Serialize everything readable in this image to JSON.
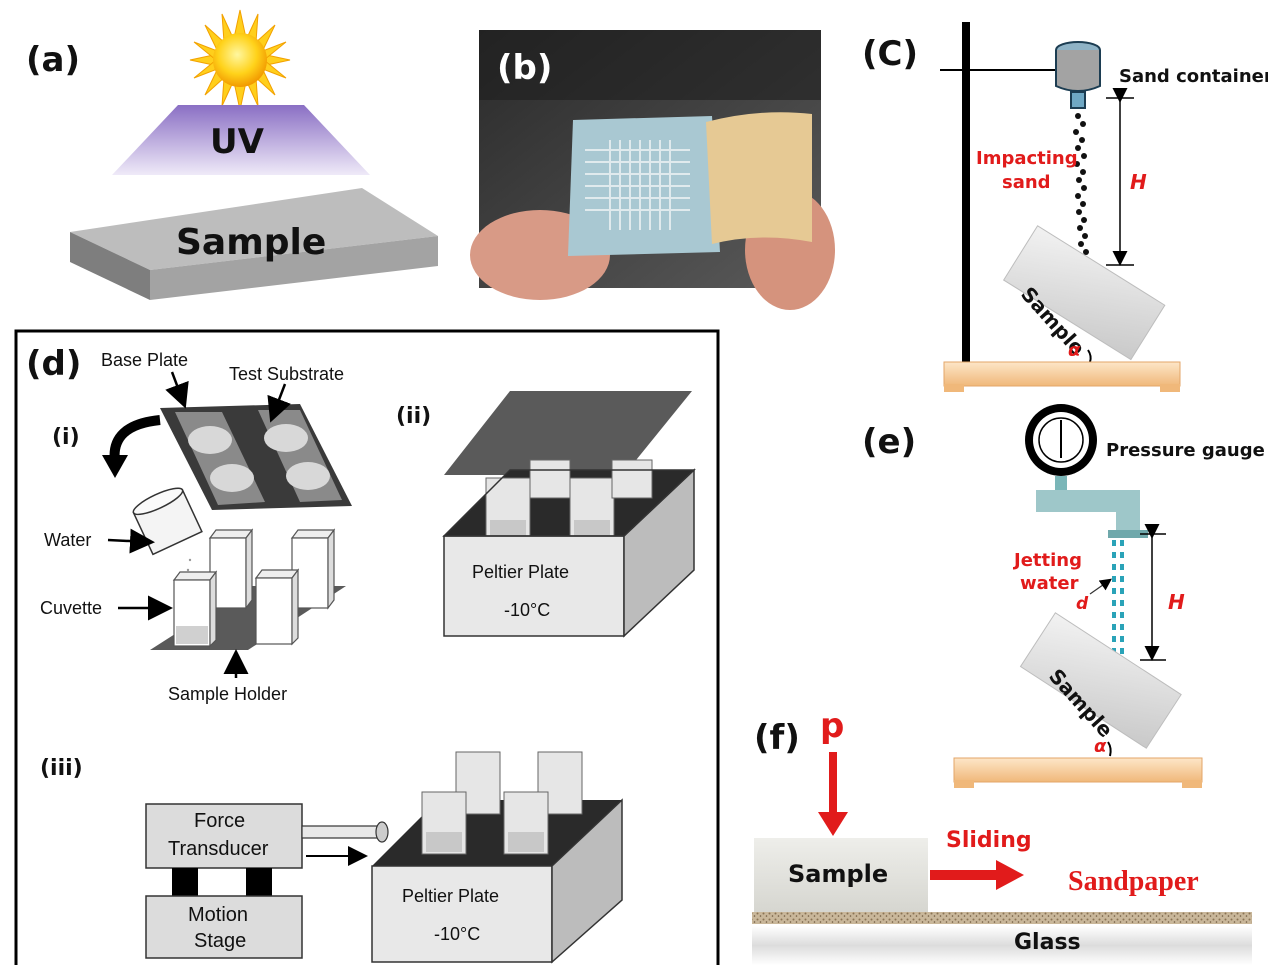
{
  "panel_a": {
    "letter": "(a)",
    "uv": "UV",
    "sample": "Sample"
  },
  "panel_b": {
    "letter": "(b)"
  },
  "panel_c": {
    "letter": "(C)",
    "sand_container": "Sand container",
    "impacting": "Impacting",
    "sand": "sand",
    "h": "H",
    "sample": "Sample",
    "alpha": "α"
  },
  "panel_d": {
    "letter": "(d)",
    "base_plate": "Base Plate",
    "test_substrate": "Test Substrate",
    "i": "(i)",
    "ii": "(ii)",
    "iii": "(iii)",
    "water": "Water",
    "cuvette": "Cuvette",
    "sample_holder": "Sample Holder",
    "peltier_plate": "Peltier Plate",
    "temp": "-10°C",
    "force": "Force",
    "transducer": "Transducer",
    "motion": "Motion",
    "stage": "Stage"
  },
  "panel_e": {
    "letter": "(e)",
    "pressure_gauge": "Pressure gauge",
    "jetting": "Jetting",
    "water": "water",
    "d": "d",
    "h": "H",
    "sample": "Sample",
    "alpha": "α"
  },
  "panel_f": {
    "letter": "(f)",
    "p": "p",
    "sample": "Sample",
    "sliding": "Sliding",
    "sandpaper": "Sandpaper",
    "glass": "Glass"
  },
  "colors": {
    "red": "#e11b1b",
    "wood": "#f4c48c",
    "water": "#2aa3b8"
  }
}
